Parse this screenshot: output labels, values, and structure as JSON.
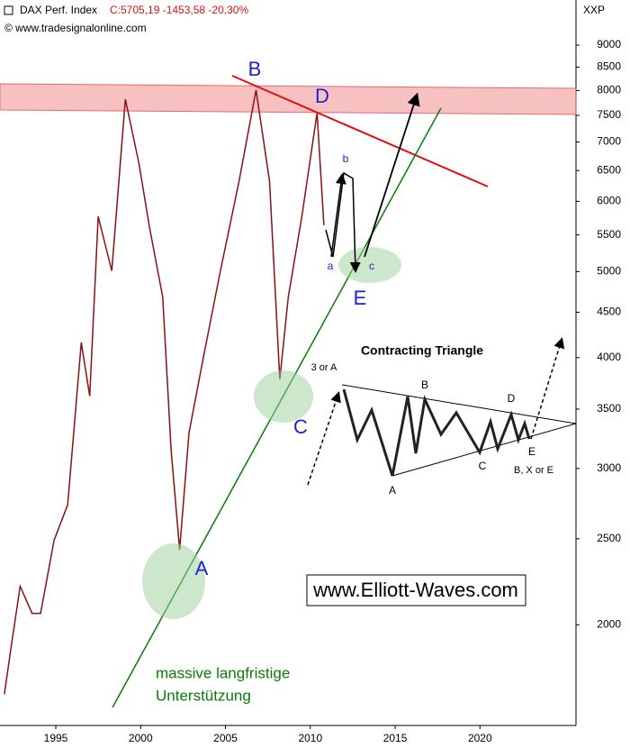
{
  "chart_data": {
    "type": "line",
    "title": "DAX Perf. Index",
    "subtitle": "C:5705,19 -1453,58 -20,30%",
    "source": "© www.tradesignalonline.com",
    "y_label": "XXP",
    "log_y": true,
    "grid": false,
    "color": "#8b1010",
    "x": [
      1991.97,
      1992.35,
      1992.9,
      1993.6,
      1994.1,
      1994.9,
      1995.7,
      1996.5,
      1997.0,
      1997.5,
      1998.3,
      1999.1,
      1999.9,
      2000.5,
      2001.3,
      2001.8,
      2002.3,
      2002.85,
      2003.65,
      2004.7,
      2005.8,
      2006.8,
      2007.6,
      2008.2,
      2008.7,
      2009.5,
      2010.4,
      2010.8
    ],
    "values": [
      1670,
      1880,
      2210,
      2060,
      2060,
      2490,
      2730,
      4160,
      3620,
      5770,
      5010,
      7820,
      6620,
      5640,
      4680,
      3140,
      2430,
      3290,
      3960,
      5010,
      6320,
      8010,
      6320,
      3780,
      4680,
      5770,
      7550,
      5640
    ],
    "xlim": [
      1991.71,
      2025.66
    ],
    "xticks": [
      1995,
      2000,
      2005,
      2010,
      2015,
      2020
    ],
    "ylim": [
      1540,
      9930
    ],
    "yticks": [
      2000,
      2500,
      3000,
      3500,
      4000,
      4500,
      5000,
      5500,
      6000,
      6500,
      7000,
      7500,
      8000,
      8500,
      9000
    ],
    "annotations": [
      "B",
      "D",
      "a",
      "b",
      "c",
      "E",
      "C",
      "A",
      "Contracting Triangle",
      "3 or A",
      "B",
      "D",
      "C",
      "A",
      "E",
      "B, X or E",
      "www.Elliott-Waves.com",
      "massive langfristige",
      "Unterstützung"
    ]
  }
}
